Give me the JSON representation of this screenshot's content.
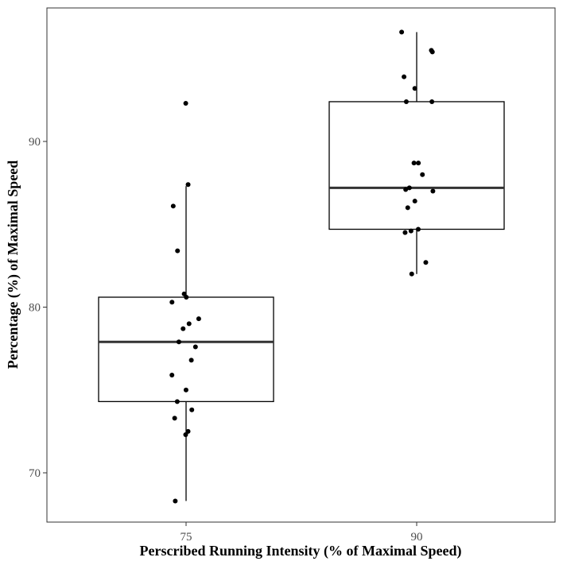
{
  "chart_data": {
    "type": "box",
    "title": "",
    "xlabel": "Perscribed Running Intensity (% of Maximal Speed)",
    "ylabel": "Percentage (%) of Maximal Speed",
    "categories": [
      "75",
      "90"
    ],
    "ylim": [
      67,
      97
    ],
    "yticks": [
      70,
      80,
      90
    ],
    "ytick_labels": [
      "70",
      "80",
      "90"
    ],
    "grid": false,
    "boxes": [
      {
        "category": "75",
        "whisker_low": 68.3,
        "q1": 74.3,
        "median": 77.9,
        "q3": 80.6,
        "whisker_high": 87.3
      },
      {
        "category": "90",
        "whisker_low": 82.0,
        "q1": 84.7,
        "median": 87.2,
        "q3": 92.4,
        "whisker_high": 96.6
      }
    ],
    "points": [
      {
        "category": "75",
        "values": [
          92.3,
          87.4,
          86.1,
          83.4,
          80.8,
          80.6,
          80.3,
          79.3,
          79.0,
          78.7,
          77.9,
          77.6,
          76.8,
          75.9,
          75.0,
          74.3,
          73.8,
          73.3,
          72.5,
          72.3,
          68.3
        ]
      },
      {
        "category": "90",
        "values": [
          96.6,
          95.5,
          95.4,
          93.9,
          93.2,
          92.4,
          92.4,
          88.7,
          88.7,
          88.0,
          87.2,
          87.1,
          87.0,
          86.4,
          86.0,
          84.7,
          84.6,
          84.5,
          82.7,
          82.0
        ]
      }
    ],
    "colors": {
      "box_stroke": "#000000",
      "median": "#333333",
      "points": "#000000",
      "panel_border": "#333333",
      "tick_text": "#4d4d4d"
    }
  }
}
